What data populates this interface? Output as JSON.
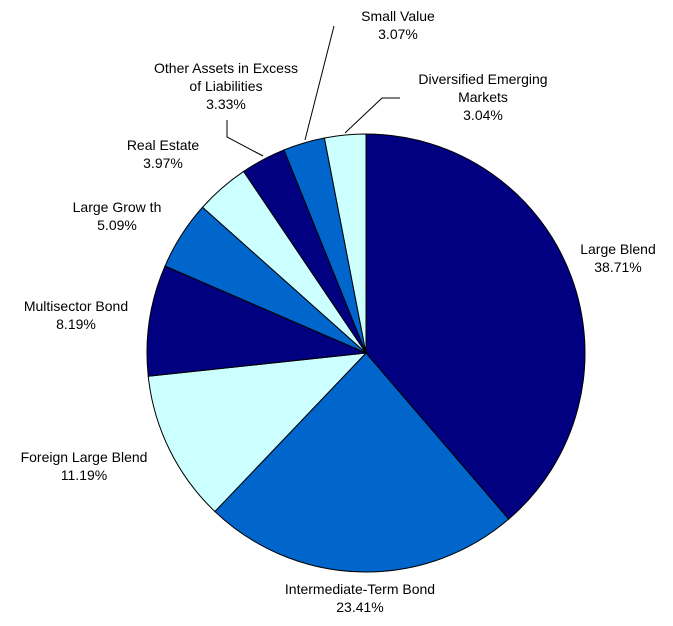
{
  "chart_data": {
    "type": "pie",
    "start_angle_deg": 0,
    "direction": "clockwise",
    "slices": [
      {
        "label": [
          "Large Blend"
        ],
        "value_text": "38.71%",
        "value": 38.71,
        "color": "#000080"
      },
      {
        "label": [
          "Intermediate-Term Bond"
        ],
        "value_text": "23.41%",
        "value": 23.41,
        "color": "#0066CC"
      },
      {
        "label": [
          "Foreign Large Blend"
        ],
        "value_text": "11.19%",
        "value": 11.19,
        "color": "#CCFFFF"
      },
      {
        "label": [
          "Multisector Bond"
        ],
        "value_text": "8.19%",
        "value": 8.19,
        "color": "#000080"
      },
      {
        "label": [
          "Large Grow th"
        ],
        "value_text": "5.09%",
        "value": 5.09,
        "color": "#0066CC"
      },
      {
        "label": [
          "Real Estate"
        ],
        "value_text": "3.97%",
        "value": 3.97,
        "color": "#CCFFFF"
      },
      {
        "label": [
          "Other Assets in Excess",
          "of Liabilities"
        ],
        "value_text": "3.33%",
        "value": 3.33,
        "color": "#000080"
      },
      {
        "label": [
          "Small Value"
        ],
        "value_text": "3.07%",
        "value": 3.07,
        "color": "#0066CC"
      },
      {
        "label": [
          "Diversified Emerging",
          "Markets"
        ],
        "value_text": "3.04%",
        "value": 3.04,
        "color": "#CCFFFF"
      }
    ]
  }
}
